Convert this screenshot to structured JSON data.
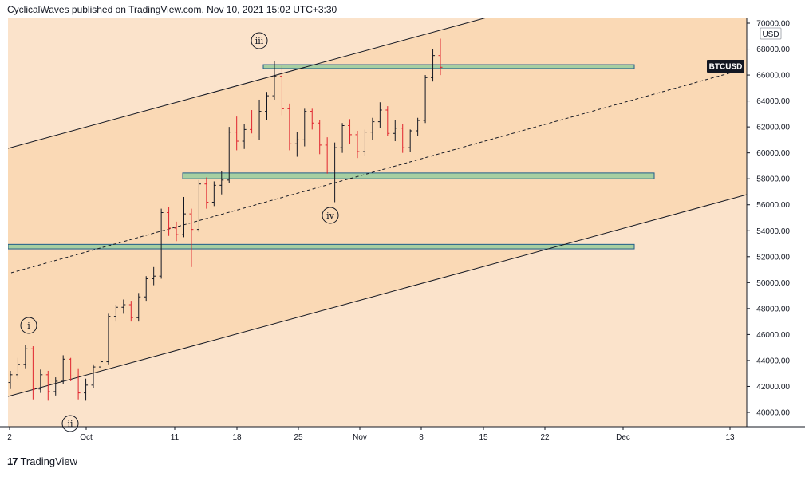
{
  "header": {
    "text": "CyclicalWaves published on TradingView.com, Nov 10, 2021 15:02 UTC+3:30"
  },
  "footer": {
    "logo": "17",
    "brand": "TradingView"
  },
  "colors": {
    "channel_fill_outer": "#fbe3cb",
    "channel_fill_inner": "#fad9b5",
    "zone_fill": "#a7cfa1",
    "zone_border": "#1f5d89",
    "bar_up": "#131722",
    "bar_down": "#e0232d",
    "axis_border": "#131722"
  },
  "chart_data": {
    "type": "bar",
    "symbol": "BTCUSD",
    "currency": "USD",
    "ylim": [
      39000,
      70500
    ],
    "y_ticks": [
      "70000.00",
      "68000.00",
      "66000.00",
      "64000.00",
      "62000.00",
      "60000.00",
      "58000.00",
      "56000.00",
      "54000.00",
      "52000.00",
      "50000.00",
      "48000.00",
      "46000.00",
      "44000.00",
      "42000.00",
      "40000.00"
    ],
    "x_ticks": [
      "2",
      "Oct",
      "11",
      "18",
      "25",
      "Nov",
      "8",
      "15",
      "22",
      "Dec",
      "13"
    ],
    "price_label": "BTCUSD",
    "wave_labels": [
      "i",
      "ii",
      "iii",
      "iv"
    ],
    "support_resistance_zones": [
      {
        "low": 66500,
        "high": 66800
      },
      {
        "low": 58000,
        "high": 58450
      },
      {
        "low": 52600,
        "high": 52950
      }
    ],
    "series": [
      {
        "ohlc_approx": [
          [
            42300,
            43200,
            41800,
            42900
          ],
          [
            42900,
            44200,
            42600,
            43700
          ],
          [
            43700,
            45200,
            43400,
            44900
          ],
          [
            44900,
            45100,
            41000,
            41800
          ],
          [
            41800,
            43300,
            41500,
            42900
          ],
          [
            42900,
            43200,
            40900,
            41600
          ],
          [
            41600,
            42700,
            41300,
            42400
          ],
          [
            42400,
            44400,
            42200,
            44100
          ],
          [
            44100,
            44200,
            42400,
            42800
          ],
          [
            42800,
            43400,
            41000,
            41500
          ],
          [
            41500,
            42600,
            40900,
            42100
          ],
          [
            42100,
            43700,
            41900,
            43500
          ],
          [
            43500,
            44100,
            43200,
            43900
          ],
          [
            43900,
            47600,
            43700,
            47400
          ],
          [
            47400,
            48300,
            47000,
            48100
          ],
          [
            48100,
            48700,
            47600,
            48300
          ],
          [
            48300,
            48600,
            47000,
            47300
          ],
          [
            47300,
            49200,
            47000,
            48900
          ],
          [
            48900,
            50500,
            48600,
            50300
          ],
          [
            50300,
            51200,
            49800,
            50500
          ],
          [
            50500,
            55700,
            50300,
            55400
          ],
          [
            55400,
            55800,
            53600,
            54200
          ],
          [
            54200,
            54700,
            53200,
            53700
          ],
          [
            53700,
            56600,
            53500,
            55300
          ],
          [
            55300,
            55700,
            51200,
            54100
          ],
          [
            54100,
            57900,
            53900,
            57600
          ],
          [
            57600,
            58100,
            55700,
            56200
          ],
          [
            56200,
            57800,
            55900,
            57500
          ],
          [
            57500,
            58600,
            56800,
            57900
          ],
          [
            57900,
            62000,
            57700,
            61600
          ],
          [
            61600,
            62800,
            60200,
            60900
          ],
          [
            60900,
            62200,
            60300,
            61800
          ],
          [
            61800,
            63300,
            61500,
            61300
          ],
          [
            61300,
            64100,
            61000,
            63200
          ],
          [
            63200,
            64700,
            62500,
            64400
          ],
          [
            64400,
            67100,
            64100,
            65900
          ],
          [
            65900,
            66700,
            62900,
            63400
          ],
          [
            63400,
            63800,
            60200,
            60700
          ],
          [
            60700,
            61600,
            59700,
            61000
          ],
          [
            61000,
            63400,
            60500,
            63200
          ],
          [
            63200,
            63400,
            61800,
            62300
          ],
          [
            62300,
            62500,
            59900,
            60600
          ],
          [
            60600,
            61200,
            58400,
            58600
          ],
          [
            58600,
            60800,
            56200,
            60400
          ],
          [
            60400,
            62300,
            60000,
            62100
          ],
          [
            62100,
            62600,
            60700,
            61400
          ],
          [
            61400,
            61700,
            59600,
            60100
          ],
          [
            60100,
            61800,
            59800,
            61600
          ],
          [
            61600,
            62700,
            61000,
            62400
          ],
          [
            62400,
            63900,
            61900,
            63300
          ],
          [
            63300,
            63600,
            61300,
            61500
          ],
          [
            61500,
            62500,
            60900,
            61900
          ],
          [
            61900,
            62200,
            60000,
            60400
          ],
          [
            60400,
            61800,
            60100,
            61700
          ],
          [
            61700,
            62700,
            61300,
            62500
          ],
          [
            62500,
            66000,
            62300,
            65800
          ],
          [
            65800,
            68000,
            65500,
            67500
          ],
          [
            67500,
            68800,
            66000,
            66600
          ]
        ]
      }
    ]
  }
}
